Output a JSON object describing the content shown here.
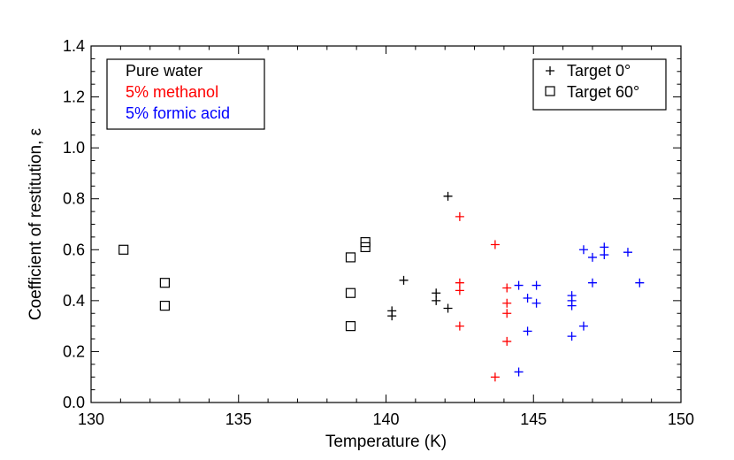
{
  "chart_data": {
    "type": "scatter",
    "title": "",
    "xlabel": "Temperature (K)",
    "ylabel": "Coefficient of restitution, ε",
    "xlim": [
      130,
      150
    ],
    "ylim": [
      0.0,
      1.4
    ],
    "xticks": [
      "130",
      "135",
      "140",
      "145",
      "150"
    ],
    "yticks": [
      "0.0",
      "0.2",
      "0.4",
      "0.6",
      "0.8",
      "1.0",
      "1.2",
      "1.4"
    ],
    "grid": false,
    "legend_fluids": {
      "placement": "top-left",
      "entries": [
        {
          "label": "Pure water",
          "color": "#000000"
        },
        {
          "label": "5% methanol",
          "color": "#ff0000"
        },
        {
          "label": "5% formic acid",
          "color": "#0000ff"
        }
      ]
    },
    "legend_markers": {
      "placement": "top-right",
      "entries": [
        {
          "label": "Target 0°",
          "marker": "plus"
        },
        {
          "label": "Target 60°",
          "marker": "square"
        }
      ]
    },
    "series": [
      {
        "name": "Pure water, Target 0°",
        "color": "#000000",
        "marker": "plus",
        "points": [
          [
            140.2,
            0.36
          ],
          [
            140.2,
            0.34
          ],
          [
            140.6,
            0.48
          ],
          [
            141.7,
            0.43
          ],
          [
            141.7,
            0.4
          ],
          [
            142.1,
            0.81
          ],
          [
            142.1,
            0.37
          ]
        ]
      },
      {
        "name": "5% methanol, Target 0°",
        "color": "#ff0000",
        "marker": "plus",
        "points": [
          [
            142.5,
            0.73
          ],
          [
            142.5,
            0.47
          ],
          [
            142.5,
            0.44
          ],
          [
            142.5,
            0.3
          ],
          [
            143.7,
            0.62
          ],
          [
            143.7,
            0.1
          ],
          [
            144.1,
            0.45
          ],
          [
            144.1,
            0.39
          ],
          [
            144.1,
            0.35
          ],
          [
            144.1,
            0.24
          ]
        ]
      },
      {
        "name": "5% formic acid, Target 0°",
        "color": "#0000ff",
        "marker": "plus",
        "points": [
          [
            144.5,
            0.46
          ],
          [
            144.5,
            0.12
          ],
          [
            144.8,
            0.41
          ],
          [
            144.8,
            0.28
          ],
          [
            145.1,
            0.46
          ],
          [
            145.1,
            0.39
          ],
          [
            146.3,
            0.42
          ],
          [
            146.3,
            0.4
          ],
          [
            146.3,
            0.38
          ],
          [
            146.3,
            0.26
          ],
          [
            146.7,
            0.6
          ],
          [
            146.7,
            0.3
          ],
          [
            147.0,
            0.57
          ],
          [
            147.0,
            0.47
          ],
          [
            147.4,
            0.61
          ],
          [
            147.4,
            0.58
          ],
          [
            148.2,
            0.59
          ],
          [
            148.6,
            0.47
          ]
        ]
      },
      {
        "name": "Pure water, Target 60°",
        "color": "#000000",
        "marker": "square",
        "points": [
          [
            131.1,
            0.6
          ],
          [
            132.5,
            0.47
          ],
          [
            132.5,
            0.38
          ],
          [
            138.8,
            0.57
          ],
          [
            138.8,
            0.43
          ],
          [
            138.8,
            0.3
          ],
          [
            139.3,
            0.63
          ],
          [
            139.3,
            0.61
          ]
        ]
      }
    ]
  }
}
